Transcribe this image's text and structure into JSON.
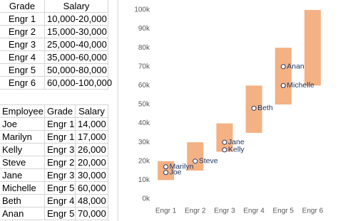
{
  "grade_table": {
    "header": [
      "Grade",
      "Salary"
    ],
    "rows": [
      [
        "Engr 1",
        "10,000-20,000"
      ],
      [
        "Engr 2",
        "15,000-30,000"
      ],
      [
        "Engr 3",
        "25,000-40,000"
      ],
      [
        "Engr 4",
        "35,000-60,000"
      ],
      [
        "Engr 5",
        "50,000-80,000"
      ],
      [
        "Engr 6",
        "60,000-100,000"
      ]
    ]
  },
  "employee_table": {
    "header": [
      "Employee",
      "Grade",
      "Salary"
    ],
    "rows": [
      [
        "Joe",
        "Engr 1",
        "14,000"
      ],
      [
        "Marilyn",
        "Engr 1",
        "17,000"
      ],
      [
        "Kelly",
        "Engr 3",
        "26,000"
      ],
      [
        "Steve",
        "Engr 2",
        "20,000"
      ],
      [
        "Jane",
        "Engr 3",
        "30,000"
      ],
      [
        "Michelle",
        "Engr 5",
        "60,000"
      ],
      [
        "Beth",
        "Engr 4",
        "48,000"
      ],
      [
        "Anan",
        "Engr 5",
        "70,000"
      ]
    ]
  },
  "chart_data": {
    "type": "range",
    "categories": [
      "Engr 1",
      "Engr 2",
      "Engr 3",
      "Engr 4",
      "Engr 5",
      "Engr 6"
    ],
    "low": [
      10000,
      15000,
      25000,
      35000,
      50000,
      60000
    ],
    "high": [
      20000,
      30000,
      40000,
      60000,
      80000,
      100000
    ],
    "color": "#f4b183",
    "ylim": [
      0,
      100000
    ],
    "yticks": [
      {
        "value": 0,
        "label": "0k"
      },
      {
        "value": 10000,
        "label": "10k"
      },
      {
        "value": 20000,
        "label": "20k"
      },
      {
        "value": 30000,
        "label": "30k"
      },
      {
        "value": 40000,
        "label": "40k"
      },
      {
        "value": 50000,
        "label": "50k"
      },
      {
        "value": 60000,
        "label": "60k"
      },
      {
        "value": 70000,
        "label": "70k"
      },
      {
        "value": 80000,
        "label": "80k"
      },
      {
        "value": 90000,
        "label": "90k"
      },
      {
        "value": 100000,
        "label": "100k"
      }
    ],
    "points": {
      "categories": [
        "Engr 1",
        "Engr 1",
        "Engr 3",
        "Engr 2",
        "Engr 3",
        "Engr 5",
        "Engr 4",
        "Engr 5"
      ],
      "values": [
        14000,
        17000,
        26000,
        20000,
        30000,
        60000,
        48000,
        70000
      ],
      "labels": [
        "Joe",
        "Marilyn",
        "Kelly",
        "Steve",
        "Jane",
        "Michelle",
        "Beth",
        "Anan"
      ],
      "color": "#1f3864"
    }
  }
}
